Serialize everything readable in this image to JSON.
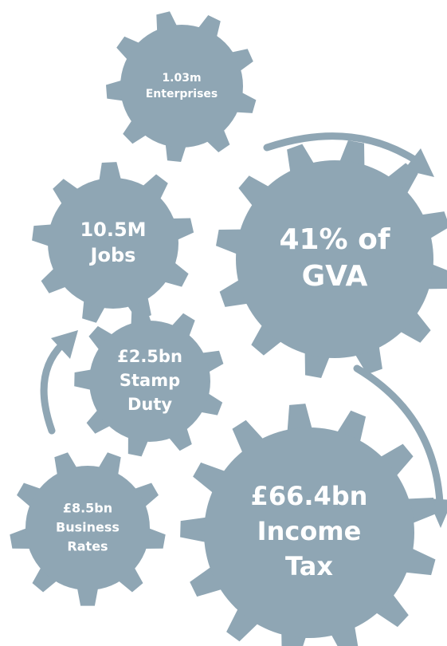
{
  "nodes": [
    {
      "lines": [
        "1.03m",
        "Enterprises"
      ]
    },
    {
      "lines": [
        "10.5M",
        "Jobs"
      ]
    },
    {
      "lines": [
        "41% of",
        "GVA"
      ]
    },
    {
      "lines": [
        "£2.5bn",
        "Stamp",
        "Duty"
      ]
    },
    {
      "lines": [
        "£8.5bn",
        "Business",
        "Rates"
      ]
    },
    {
      "lines": [
        "£66.4bn",
        "Income",
        "Tax"
      ]
    }
  ]
}
